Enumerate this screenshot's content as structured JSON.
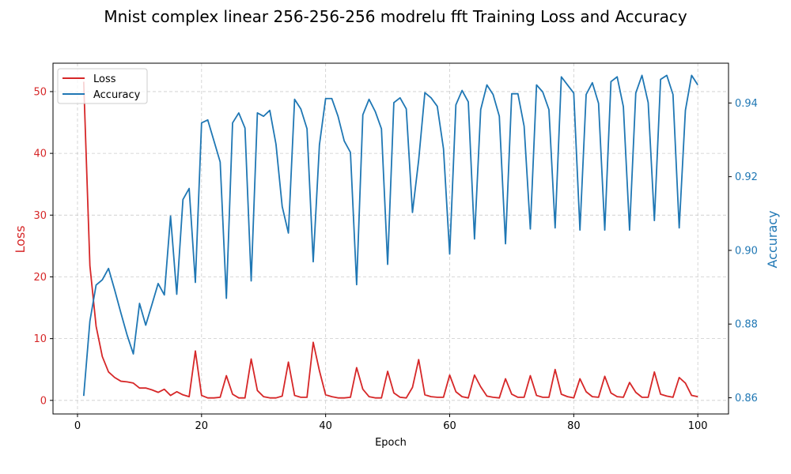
{
  "chart_data": {
    "type": "line",
    "title": "Mnist complex linear 256-256-256 modrelu fft Training Loss and Accuracy",
    "xlabel": "Epoch",
    "xlim": [
      -3.95,
      104.95
    ],
    "x_ticks": [
      0,
      20,
      40,
      60,
      80,
      100
    ],
    "grid": true,
    "legend_position": "upper-left",
    "left_axis": {
      "label": "Loss",
      "color": "#d62728",
      "ylim": [
        -2.2,
        54.6
      ],
      "ticks": [
        0,
        10,
        20,
        30,
        40,
        50
      ]
    },
    "right_axis": {
      "label": "Accuracy",
      "color": "#1f77b4",
      "ylim": [
        0.8556,
        0.9508
      ],
      "ticks": [
        0.86,
        0.88,
        0.9,
        0.92,
        0.94
      ],
      "tick_labels": [
        "0.86",
        "0.88",
        "0.90",
        "0.92",
        "0.94"
      ]
    },
    "series": [
      {
        "name": "Loss",
        "axis": "left",
        "color": "#d62728",
        "x": [
          1,
          2,
          3,
          4,
          5,
          6,
          7,
          8,
          9,
          10,
          11,
          12,
          13,
          14,
          15,
          16,
          17,
          18,
          19,
          20,
          21,
          22,
          23,
          24,
          25,
          26,
          27,
          28,
          29,
          30,
          31,
          32,
          33,
          34,
          35,
          36,
          37,
          38,
          39,
          40,
          41,
          42,
          43,
          44,
          45,
          46,
          47,
          48,
          49,
          50,
          51,
          52,
          53,
          54,
          55,
          56,
          57,
          58,
          59,
          60,
          61,
          62,
          63,
          64,
          65,
          66,
          67,
          68,
          69,
          70,
          71,
          72,
          73,
          74,
          75,
          76,
          77,
          78,
          79,
          80,
          81,
          82,
          83,
          84,
          85,
          86,
          87,
          88,
          89,
          90,
          91,
          92,
          93,
          94,
          95,
          96,
          97,
          98,
          99,
          100
        ],
        "values": [
          51.6,
          21.8,
          12.0,
          7.1,
          4.6,
          3.7,
          3.1,
          3.0,
          2.8,
          2.0,
          2.0,
          1.7,
          1.3,
          1.8,
          0.8,
          1.4,
          0.9,
          0.6,
          8.0,
          0.8,
          0.4,
          0.4,
          0.5,
          4.0,
          1.0,
          0.4,
          0.4,
          6.7,
          1.6,
          0.6,
          0.4,
          0.4,
          0.7,
          6.2,
          0.8,
          0.5,
          0.5,
          9.4,
          4.8,
          0.9,
          0.6,
          0.4,
          0.4,
          0.5,
          5.3,
          1.8,
          0.6,
          0.4,
          0.4,
          4.7,
          1.2,
          0.5,
          0.4,
          2.1,
          6.6,
          0.9,
          0.6,
          0.5,
          0.5,
          4.1,
          1.4,
          0.6,
          0.4,
          4.1,
          2.2,
          0.7,
          0.5,
          0.4,
          3.5,
          1.0,
          0.5,
          0.5,
          4.0,
          0.8,
          0.5,
          0.5,
          5.0,
          1.0,
          0.6,
          0.4,
          3.5,
          1.4,
          0.6,
          0.5,
          3.9,
          1.2,
          0.6,
          0.5,
          2.9,
          1.3,
          0.5,
          0.5,
          4.6,
          1.0,
          0.7,
          0.5,
          3.7,
          2.8,
          0.8,
          0.6
        ]
      },
      {
        "name": "Accuracy",
        "axis": "right",
        "color": "#1f77b4",
        "x": [
          1,
          2,
          3,
          4,
          5,
          6,
          7,
          8,
          9,
          10,
          11,
          12,
          13,
          14,
          15,
          16,
          17,
          18,
          19,
          20,
          21,
          22,
          23,
          24,
          25,
          26,
          27,
          28,
          29,
          30,
          31,
          32,
          33,
          34,
          35,
          36,
          37,
          38,
          39,
          40,
          41,
          42,
          43,
          44,
          45,
          46,
          47,
          48,
          49,
          50,
          51,
          52,
          53,
          54,
          55,
          56,
          57,
          58,
          59,
          60,
          61,
          62,
          63,
          64,
          65,
          66,
          67,
          68,
          69,
          70,
          71,
          72,
          73,
          74,
          75,
          76,
          77,
          78,
          79,
          80,
          81,
          82,
          83,
          84,
          85,
          86,
          87,
          88,
          89,
          90,
          91,
          92,
          93,
          94,
          95,
          96,
          97,
          98,
          99,
          100
        ],
        "values": [
          0.8605,
          0.8808,
          0.8906,
          0.892,
          0.8951,
          0.8892,
          0.883,
          0.877,
          0.8719,
          0.8856,
          0.8797,
          0.8853,
          0.891,
          0.8879,
          0.9093,
          0.8881,
          0.9138,
          0.9168,
          0.8913,
          0.9346,
          0.9354,
          0.9297,
          0.924,
          0.887,
          0.9346,
          0.9373,
          0.9332,
          0.8917,
          0.9373,
          0.9364,
          0.938,
          0.9288,
          0.9119,
          0.9047,
          0.941,
          0.9384,
          0.933,
          0.8969,
          0.9286,
          0.9412,
          0.9412,
          0.9364,
          0.9297,
          0.9266,
          0.8907,
          0.9368,
          0.941,
          0.9377,
          0.933,
          0.8962,
          0.9401,
          0.9414,
          0.9384,
          0.9103,
          0.9245,
          0.9428,
          0.9414,
          0.9391,
          0.9276,
          0.899,
          0.9395,
          0.9434,
          0.9403,
          0.9031,
          0.9382,
          0.9449,
          0.9423,
          0.9364,
          0.9018,
          0.9425,
          0.9425,
          0.9337,
          0.9058,
          0.9449,
          0.943,
          0.9382,
          0.9061,
          0.9471,
          0.9449,
          0.9427,
          0.9055,
          0.9423,
          0.9455,
          0.9399,
          0.9055,
          0.9458,
          0.9471,
          0.939,
          0.9055,
          0.9427,
          0.9475,
          0.9401,
          0.9081,
          0.9464,
          0.9475,
          0.9423,
          0.9061,
          0.938,
          0.9475,
          0.9449
        ]
      }
    ]
  }
}
